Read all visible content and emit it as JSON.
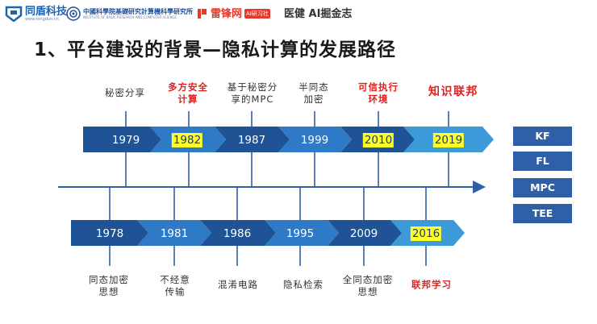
{
  "header": {
    "logos": [
      {
        "name": "同盾科技",
        "sub": "www.tongdun.cn",
        "color": "#1e63ad"
      },
      {
        "name": "中國科學院基礎研究計算機科學研究所",
        "sub": "INSTITUTE OF BASIC RESEARCH AND COMPUTER SCIENCE",
        "color": "#1e4f9a"
      },
      {
        "name": "雷锋网",
        "tag": "AI研习社",
        "color": "#e8372b"
      },
      {
        "name": "医健 AI掘金志",
        "color": "#333333"
      }
    ]
  },
  "title": "1、平台建设的背景—隐私计算的发展路径",
  "top_row": [
    {
      "year": "1979",
      "label": "秘密分享",
      "highlight": false,
      "label_style": "normal"
    },
    {
      "year": "1982",
      "label": "多方安全\n计算",
      "highlight": true,
      "label_style": "red"
    },
    {
      "year": "1987",
      "label": "基于秘密分\n享的MPC",
      "highlight": false,
      "label_style": "normal"
    },
    {
      "year": "1999",
      "label": "半同态\n加密",
      "highlight": false,
      "label_style": "normal"
    },
    {
      "year": "2010",
      "label": "可信执行\n环境",
      "highlight": true,
      "label_style": "red"
    },
    {
      "year": "2019",
      "label": "知识联邦",
      "highlight": true,
      "label_style": "red-big"
    }
  ],
  "bottom_row": [
    {
      "year": "1978",
      "label": "同态加密\n思想",
      "highlight": false,
      "label_style": "normal"
    },
    {
      "year": "1981",
      "label": "不经意\n传输",
      "highlight": false,
      "label_style": "normal"
    },
    {
      "year": "1986",
      "label": "混淆电路",
      "highlight": false,
      "label_style": "normal"
    },
    {
      "year": "1995",
      "label": "隐私检索",
      "highlight": false,
      "label_style": "normal"
    },
    {
      "year": "2009",
      "label": "全同态加密\n思想",
      "highlight": false,
      "label_style": "normal"
    },
    {
      "year": "2016",
      "label": "联邦学习",
      "highlight": true,
      "label_style": "red"
    }
  ],
  "side_buttons": [
    "KF",
    "FL",
    "MPC",
    "TEE"
  ],
  "colors": {
    "dark_blue": "#1f5396",
    "mid_blue": "#2f7ac7",
    "light_blue": "#3d9ad8",
    "lightest_blue": "#57b0e8",
    "axis": "#2f5fa7",
    "highlight": "#ffff2a",
    "accent_red": "#e02020"
  }
}
